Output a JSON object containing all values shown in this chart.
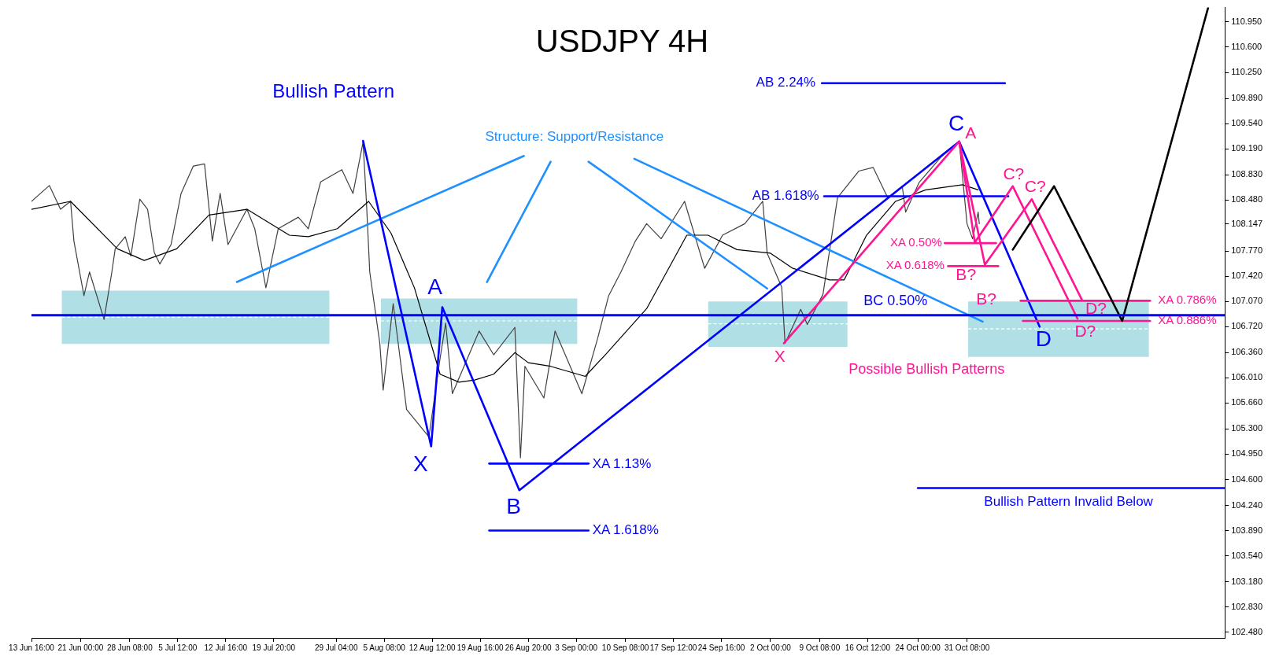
{
  "chart_data": {
    "type": "line",
    "title": "USDJPY 4H",
    "legend": false,
    "grid": false,
    "xlim": [
      "--06-13T16:00",
      "--12-08T20:00"
    ],
    "ylim": [
      102.4,
      111.15
    ],
    "xticks": [
      {
        "value": "--06-13T16:00",
        "label": "13 Jun 16:00"
      },
      {
        "value": "--06-21T00:00",
        "label": "21 Jun 00:00"
      },
      {
        "value": "--06-28T08:00",
        "label": "28 Jun 08:00"
      },
      {
        "value": "--07-05T12:00",
        "label": "5 Jul 12:00"
      },
      {
        "value": "--07-12T16:00",
        "label": "12 Jul 16:00"
      },
      {
        "value": "--07-19T20:00",
        "label": "19 Jul 20:00"
      },
      {
        "value": "--07-29T04:00",
        "label": "29 Jul 04:00"
      },
      {
        "value": "--08-05T08:00",
        "label": "5 Aug 08:00"
      },
      {
        "value": "--08-12T12:00",
        "label": "12 Aug 12:00"
      },
      {
        "value": "--08-19T16:00",
        "label": "19 Aug 16:00"
      },
      {
        "value": "--08-26T20:00",
        "label": "26 Aug 20:00"
      },
      {
        "value": "--09-03T00:00",
        "label": "3 Sep 00:00"
      },
      {
        "value": "--09-10T08:00",
        "label": "10 Sep 08:00"
      },
      {
        "value": "--09-17T12:00",
        "label": "17 Sep 12:00"
      },
      {
        "value": "--09-24T16:00",
        "label": "24 Sep 16:00"
      },
      {
        "value": "--10-02T00:00",
        "label": "2 Oct 00:00"
      },
      {
        "value": "--10-09T08:00",
        "label": "9 Oct 08:00"
      },
      {
        "value": "--10-16T12:00",
        "label": "16 Oct 12:00"
      },
      {
        "value": "--10-24T00:00",
        "label": "24 Oct 00:00"
      },
      {
        "value": "--10-31T08:00",
        "label": "31 Oct 08:00"
      }
    ],
    "yticks": [
      {
        "value": 110.95,
        "label": "110.950"
      },
      {
        "value": 110.6,
        "label": "110.600"
      },
      {
        "value": 110.25,
        "label": "110.250"
      },
      {
        "value": 109.89,
        "label": "109.890"
      },
      {
        "value": 109.54,
        "label": "109.540"
      },
      {
        "value": 109.19,
        "label": "109.190"
      },
      {
        "value": 108.83,
        "label": "108.830"
      },
      {
        "value": 108.48,
        "label": "108.480"
      },
      {
        "value": 108.147,
        "label": "108.147"
      },
      {
        "value": 107.77,
        "label": "107.770"
      },
      {
        "value": 107.42,
        "label": "107.420"
      },
      {
        "value": 107.07,
        "label": "107.070"
      },
      {
        "value": 106.72,
        "label": "106.720"
      },
      {
        "value": 106.36,
        "label": "106.360"
      },
      {
        "value": 106.01,
        "label": "106.010"
      },
      {
        "value": 105.66,
        "label": "105.660"
      },
      {
        "value": 105.3,
        "label": "105.300"
      },
      {
        "value": 104.95,
        "label": "104.950"
      },
      {
        "value": 104.6,
        "label": "104.600"
      },
      {
        "value": 104.24,
        "label": "104.240"
      },
      {
        "value": 103.89,
        "label": "103.890"
      },
      {
        "value": 103.54,
        "label": "103.540"
      },
      {
        "value": 103.18,
        "label": "103.180"
      },
      {
        "value": 102.83,
        "label": "102.830"
      },
      {
        "value": 102.48,
        "label": "102.480"
      }
    ],
    "ref_lines": [
      {
        "axis": "y",
        "value": 106.88,
        "color": "#0000ff"
      }
    ],
    "series": [
      {
        "color": "#ffffff",
        "line_style": "dashed",
        "x": [
          "--06-18T04:00",
          "--07-28T04:00"
        ],
        "values": [
          106.85,
          106.85
        ],
        "lower": [
          106.48,
          106.48
        ],
        "upper": [
          107.22,
          107.22
        ]
      },
      {
        "color": "#ffffff",
        "line_style": "dashed",
        "x": [
          "--08-04T20:00",
          "--09-03T04:00"
        ],
        "values": [
          106.8,
          106.8
        ],
        "lower": [
          106.48,
          106.48
        ],
        "upper": [
          107.11,
          107.11
        ]
      },
      {
        "color": "#ffffff",
        "line_style": "dashed",
        "x": [
          "--09-22T16:00",
          "--10-13T12:00"
        ],
        "values": [
          106.76,
          106.76
        ],
        "lower": [
          106.44,
          106.44
        ],
        "upper": [
          107.07,
          107.07
        ]
      },
      {
        "color": "#ffffff",
        "line_style": "dashed",
        "x": [
          "--10-31T12:00",
          "--11-27T12:00"
        ],
        "values": [
          106.69,
          106.69
        ],
        "lower": [
          106.3,
          106.3
        ],
        "upper": [
          107.07,
          107.07
        ]
      },
      {
        "color": "#404040",
        "x": [
          "--06-13T16:00",
          "--06-16T08:00",
          "--06-18T00:00",
          "--06-19T12:00",
          "--06-20T00:00",
          "--06-21T12:00",
          "--06-22T08:00",
          "--06-24T12:00",
          "--06-25T16:00",
          "--06-26T04:00",
          "--06-27T16:00",
          "--06-28T12:00",
          "--06-29T20:00",
          "--07-01T00:00",
          "--07-02T00:00",
          "--07-02T20:00",
          "--07-04T12:00",
          "--07-06T00:00",
          "--07-07T20:00",
          "--07-09T12:00",
          "--07-10T16:00",
          "--07-11T20:00",
          "--07-13T00:00",
          "--07-15T20:00",
          "--07-17T00:00",
          "--07-18T16:00",
          "--07-20T12:00",
          "--07-23T12:00",
          "--07-25T00:00",
          "--07-26T20:00",
          "--07-30T00:00",
          "--07-31T16:00",
          "--08-02T04:00",
          "--08-02T16:00",
          "--08-03T04:00",
          "--08-04T16:00",
          "--08-05T04:00",
          "--08-06T16:00",
          "--08-08T16:00",
          "--08-12T00:00",
          "--08-13T16:00",
          "--08-14T12:00",
          "--08-15T12:00",
          "--08-19T12:00",
          "--08-21T16:00",
          "--08-24T20:00",
          "--08-25T16:00",
          "--08-26T08:00",
          "--08-29T04:00",
          "--08-30T20:00",
          "--09-03T20:00",
          "--09-06T04:00",
          "--09-07T20:00",
          "--09-09T16:00",
          "--09-11T20:00",
          "--09-13T12:00",
          "--09-15T16:00",
          "--09-19T04:00",
          "--09-22T04:00",
          "--09-24T20:00",
          "--09-28T04:00",
          "--09-30T20:00",
          "--10-01T12:00",
          "--10-03T16:00",
          "--10-04T04:00",
          "--10-06T12:00",
          "--10-07T12:00",
          "--10-09T20:00",
          "--10-12T00:00",
          "--10-15T04:00",
          "--10-17T08:00",
          "--10-19T12:00",
          "--10-21T16:00",
          "--10-22T04:00",
          "--10-24T04:00",
          "--10-27T12:00",
          "--10-30T04:00",
          "--10-31T08:00",
          "--11-01T04:00",
          "--11-02T00:00",
          "--11-02T04:00"
        ],
        "values": [
          108.46,
          108.68,
          108.35,
          108.46,
          107.91,
          107.15,
          107.48,
          106.82,
          107.48,
          107.8,
          107.97,
          107.7,
          108.49,
          108.35,
          107.75,
          107.59,
          107.86,
          108.57,
          108.95,
          108.98,
          107.91,
          108.57,
          107.86,
          108.35,
          108.08,
          107.26,
          108.08,
          108.24,
          108.08,
          108.73,
          108.9,
          108.57,
          109.28,
          108.46,
          107.48,
          106.49,
          105.84,
          107.04,
          105.57,
          105.19,
          106.28,
          106.77,
          105.79,
          106.66,
          106.33,
          106.71,
          104.9,
          106.17,
          105.73,
          106.66,
          105.79,
          106.55,
          107.15,
          107.48,
          107.91,
          108.15,
          107.94,
          108.46,
          107.53,
          107.99,
          108.15,
          108.46,
          107.74,
          107.27,
          106.49,
          106.96,
          106.75,
          107.17,
          108.51,
          108.88,
          108.93,
          108.51,
          108.67,
          108.31,
          108.72,
          109.08,
          109.29,
          108.15,
          107.94,
          108.31,
          108.15
        ]
      },
      {
        "color": "#000000",
        "x": [
          "--06-13T16:00",
          "--06-19T12:00",
          "--06-26T12:00",
          "--06-30T12:00",
          "--07-05T08:00",
          "--07-10T04:00",
          "--07-15T20:00",
          "--07-22T04:00",
          "--07-25T00:00",
          "--07-29T08:00",
          "--08-03T00:00",
          "--08-06T08:00",
          "--08-09T20:00",
          "--08-13T16:00",
          "--08-16T12:00",
          "--08-18T20:00",
          "--08-21T16:00",
          "--08-24T20:00",
          "--08-26T20:00",
          "--08-30T04:00",
          "--09-04T08:00",
          "--09-07T08:00",
          "--09-13T12:00",
          "--09-19T12:00",
          "--09-22T16:00",
          "--09-27T00:00",
          "--10-02T00:00",
          "--10-05T08:00",
          "--10-10T20:00",
          "--10-13T00:00",
          "--10-16T08:00",
          "--10-20T16:00",
          "--10-25T04:00",
          "--10-30T16:00",
          "--11-02T00:00"
        ],
        "values": [
          108.35,
          108.46,
          107.8,
          107.64,
          107.8,
          108.27,
          108.35,
          107.99,
          107.97,
          108.08,
          108.46,
          108.02,
          107.26,
          106.06,
          105.95,
          105.98,
          106.06,
          106.36,
          106.22,
          106.17,
          106.03,
          106.33,
          106.97,
          107.99,
          107.99,
          107.79,
          107.74,
          107.53,
          107.37,
          107.37,
          107.99,
          108.46,
          108.62,
          108.69,
          108.62
        ]
      },
      {
        "color": "#1e90ff",
        "x": [
          "--07-14T08:00",
          "--08-26T04:00"
        ],
        "values": [
          107.34,
          109.09
        ]
      },
      {
        "color": "#1e90ff",
        "x": [
          "--08-20T16:00",
          "--08-30T04:00"
        ],
        "values": [
          107.34,
          109.01
        ]
      },
      {
        "color": "#1e90ff",
        "x": [
          "--09-04T20:00",
          "--10-01T12:00"
        ],
        "values": [
          109.01,
          107.25
        ]
      },
      {
        "color": "#1e90ff",
        "x": [
          "--09-11T16:00",
          "--11-02T16:00"
        ],
        "values": [
          109.05,
          106.79
        ]
      },
      {
        "color": "#0000ff",
        "x": [
          "--08-02T04:00",
          "--08-12T08:00",
          "--08-14T00:00",
          "--08-25T12:00",
          "--10-30T04:00",
          "--11-11T04:00"
        ],
        "values": [
          109.3,
          105.06,
          106.99,
          104.45,
          109.29,
          106.72
        ]
      },
      {
        "color": "#0000ff",
        "x": [
          "--10-09T16:00",
          "--11-06T00:00"
        ],
        "values": [
          110.1,
          110.1
        ]
      },
      {
        "color": "#0000ff",
        "x": [
          "--10-10T00:00",
          "--11-06T12:00"
        ],
        "values": [
          108.53,
          108.53
        ]
      },
      {
        "color": "#0000ff",
        "x": [
          "--08-21T00:00",
          "--09-04T20:00"
        ],
        "values": [
          104.82,
          104.82
        ]
      },
      {
        "color": "#0000ff",
        "x": [
          "--08-21T00:00",
          "--09-04T20:00"
        ],
        "values": [
          103.89,
          103.89
        ]
      },
      {
        "color": "#0000ff",
        "x": [
          "--10-24T00:00",
          "--12-08T20:00"
        ],
        "values": [
          104.48,
          104.48
        ]
      },
      {
        "color": "#ff1493",
        "x": [
          "--10-04T00:00",
          "--10-30T04:00",
          "--11-01T12:00",
          "--11-07T04:00",
          "--11-16T20:00"
        ],
        "values": [
          106.49,
          109.29,
          107.89,
          108.67,
          106.83
        ]
      },
      {
        "color": "#ff1493",
        "x": [
          "--10-30T04:00",
          "--11-03T00:00",
          "--11-10T00:00",
          "--11-17T12:00"
        ],
        "values": [
          109.29,
          107.58,
          108.49,
          107.09
        ]
      },
      {
        "color": "#ff1493",
        "x": [
          "--10-28T00:00",
          "--11-04T16:00"
        ],
        "values": [
          107.88,
          107.88
        ]
      },
      {
        "color": "#ff1493",
        "x": [
          "--10-28T12:00",
          "--11-05T00:00"
        ],
        "values": [
          107.56,
          107.56
        ]
      },
      {
        "color": "#ff1493",
        "x": [
          "--11-08T08:00",
          "--11-27T16:00"
        ],
        "values": [
          107.08,
          107.08
        ]
      },
      {
        "color": "#ff1493",
        "x": [
          "--11-08T16:00",
          "--11-27T16:00"
        ],
        "values": [
          106.8,
          106.8
        ]
      },
      {
        "color": "#000000",
        "x": [
          "--11-07T04:00",
          "--11-13T08:00",
          "--11-23T12:00",
          "--12-06T08:00"
        ],
        "values": [
          107.79,
          108.67,
          106.8,
          111.15
        ]
      }
    ],
    "annotations": [
      "Bullish Pattern",
      "Structure: Support/Resistance",
      "Possible Bullish Patterns",
      "X",
      "A",
      "B",
      "C",
      "D",
      "AB 2.24%",
      "AB 1.618%",
      "XA 1.13%",
      "XA 1.618%",
      "BC 0.50%",
      "Bullish Pattern Invalid Below",
      "X",
      "A",
      "B?",
      "B?",
      "C?",
      "C?",
      "D?",
      "D?",
      "XA 0.50%",
      "XA 0.618%",
      "XA 0.786%",
      "XA 0.886%"
    ]
  }
}
